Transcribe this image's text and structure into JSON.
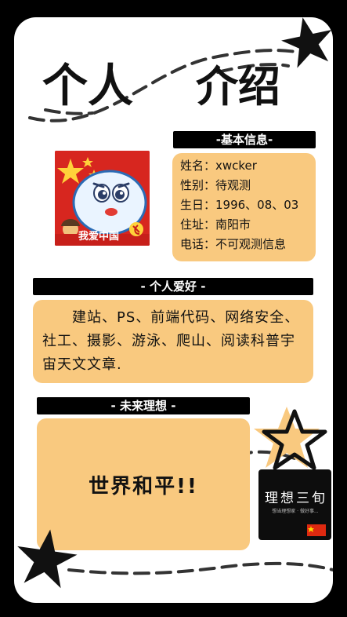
{
  "title": {
    "part1": "个人",
    "part2": "介绍"
  },
  "basic_info": {
    "header": "-基本信息-",
    "name": "姓名：xwcker",
    "gender": "性别：待观测",
    "birthday": "生日：1996、08、03",
    "address": "住址：南阳市",
    "phone": "电话：不可观测信息"
  },
  "avatar": {
    "badge_text": "我爱中国"
  },
  "hobbies": {
    "header": "- 个人爱好 -",
    "text": "　　建站、PS、前端代码、网络安全、社工、摄影、游泳、爬山、阅读科普宇宙天文文章."
  },
  "ideal": {
    "header": "- 未来理想 -",
    "text": "世界和平!!"
  },
  "logo": {
    "main": "理想三旬",
    "sub": "想当理想家 · 做好事..."
  },
  "colors": {
    "panel": "#f9c97f",
    "ink": "#111111",
    "background": "#000000"
  }
}
